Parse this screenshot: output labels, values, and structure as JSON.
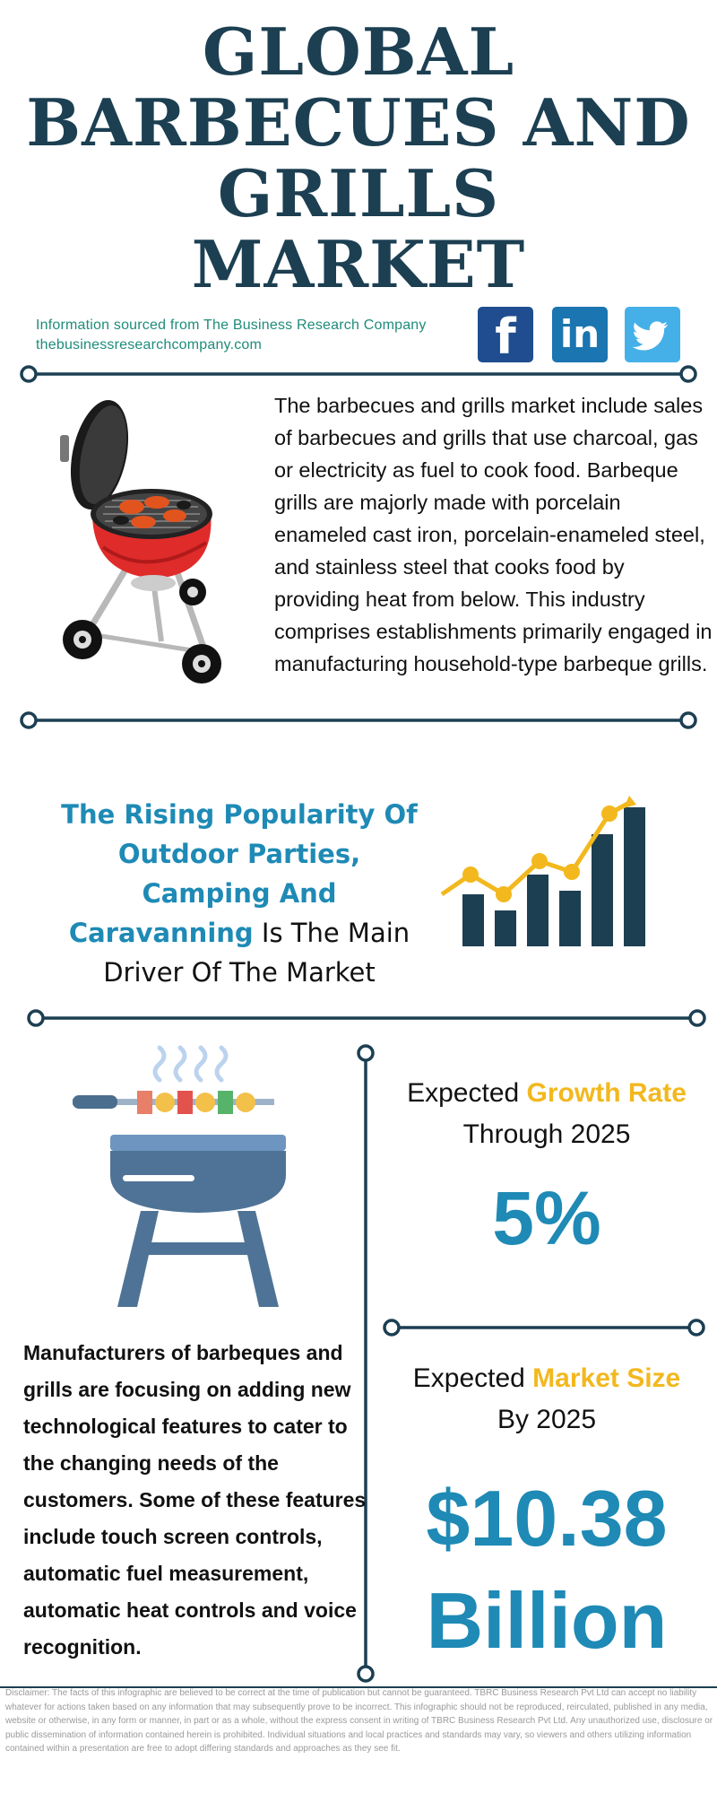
{
  "title": [
    "GLOBAL",
    "BARBECUES AND",
    "GRILLS",
    "MARKET"
  ],
  "source": {
    "line1": "Information sourced from The Business Research Company",
    "line2": "thebusinessresearchcompany.com"
  },
  "social": {
    "facebook": "f",
    "linkedin": "in",
    "twitter": "twitter"
  },
  "description": "The barbecues and grills market include sales of barbecues and grills that use charcoal, gas or electricity as fuel to cook food. Barbeque grills are majorly made with porcelain enameled cast iron, porcelain-enameled steel, and stainless steel that cooks food by providing heat from below. This industry comprises establishments primarily engaged in manufacturing household-type barbeque grills.",
  "driver": {
    "highlight": "The Rising Popularity Of Outdoor Parties, Camping And Caravanning",
    "rest": " Is The Main Driver Of The Market"
  },
  "growth": {
    "label_prefix": "Expected ",
    "label_highlight": "Growth Rate",
    "label_suffix": "Through 2025",
    "value": "5%"
  },
  "size": {
    "label_prefix": "Expected ",
    "label_highlight": "Market Size",
    "label_suffix": "By 2025",
    "value_line1": "$10.38",
    "value_line2": "Billion"
  },
  "manufacturers": "Manufacturers of barbeques and grills are focusing on adding new technological features to cater to the changing needs of the customers. Some of these features include touch screen controls, automatic fuel measurement, automatic heat controls and voice recognition.",
  "disclaimer": "Disclaimer: The facts of this infographic are believed to be correct at the time of publication but cannot be guaranteed. TBRC Business Research Pvt Ltd can accept no liability whatever for actions taken based on any information that may subsequently prove to be incorrect. This infographic should not be reproduced, reirculated, published in any media, website or otherwise, in any form or manner, in part or as a whole, without the express consent in writing of TBRC Business Research Pvt Ltd. Any unauthorized use, disclosure or public dissemination of information contained herein is prohibited. Individual situations and local practices and standards may vary, so viewers and others utilizing information contained within a presentation are free to adopt differing standards and approaches as they see fit.",
  "colors": {
    "navy": "#1c3f52",
    "blue": "#1e8ab5",
    "gold": "#f2b81e",
    "teal": "#1e8c7a",
    "facebook": "#1f4d8f",
    "linkedin": "#1a75b0",
    "twitter": "#45b0e8"
  },
  "icons": [
    "facebook-icon",
    "linkedin-icon",
    "twitter-icon",
    "kettle-grill-icon",
    "growth-chart-icon",
    "skewer-grill-icon"
  ]
}
